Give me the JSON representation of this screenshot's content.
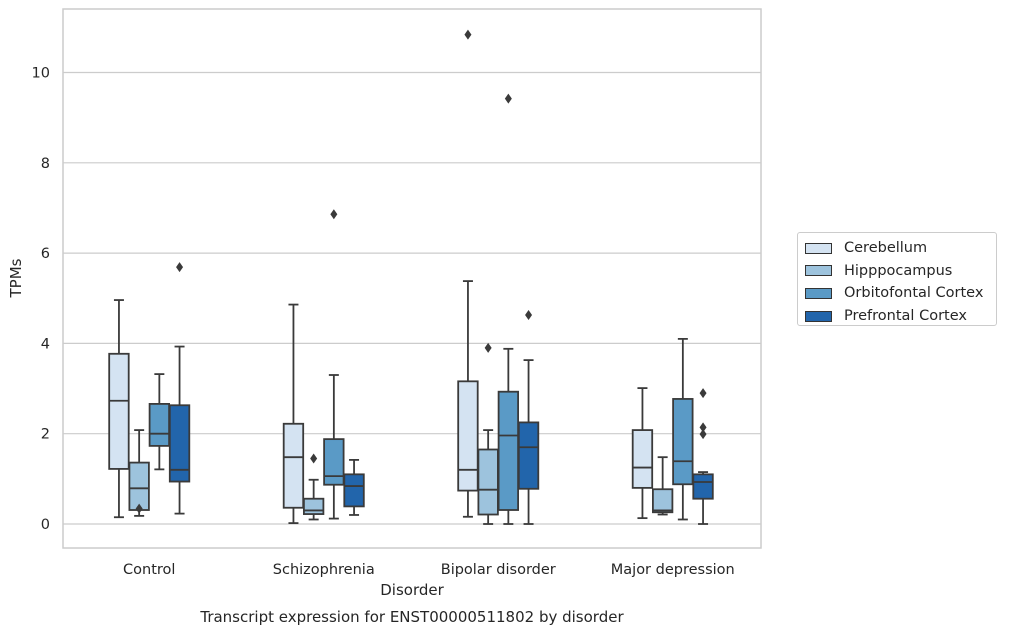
{
  "chart_data": {
    "type": "box",
    "title": "Transcript expression for ENST00000511802 by disorder",
    "xlabel": "Disorder",
    "ylabel": "TPMs",
    "ylim": [
      -0.5,
      11.4
    ],
    "yticks": [
      0,
      2,
      4,
      6,
      8,
      10
    ],
    "grid": "horizontal",
    "legend_position": "right",
    "categories": [
      "Control",
      "Schizophrenia",
      "Bipolar disorder",
      "Major depression"
    ],
    "series": [
      {
        "name": "Cerebellum",
        "color": "#d4e3f2",
        "boxes": [
          {
            "min": 0.15,
            "q1": 1.22,
            "median": 2.73,
            "q3": 3.77,
            "max": 4.96,
            "outliers": []
          },
          {
            "min": 0.02,
            "q1": 0.36,
            "median": 1.48,
            "q3": 2.22,
            "max": 4.86,
            "outliers": []
          },
          {
            "min": 0.16,
            "q1": 0.74,
            "median": 1.2,
            "q3": 3.16,
            "max": 5.38,
            "outliers": [
              10.84
            ]
          },
          {
            "min": 0.13,
            "q1": 0.8,
            "median": 1.25,
            "q3": 2.08,
            "max": 3.01,
            "outliers": []
          }
        ]
      },
      {
        "name": "Hipppocampus",
        "color": "#9dc3dd",
        "boxes": [
          {
            "min": 0.18,
            "q1": 0.31,
            "median": 0.79,
            "q3": 1.36,
            "max": 2.08,
            "outliers": [
              0.34
            ]
          },
          {
            "min": 0.1,
            "q1": 0.22,
            "median": 0.3,
            "q3": 0.56,
            "max": 0.98,
            "outliers": [
              1.45
            ]
          },
          {
            "min": 0.0,
            "q1": 0.21,
            "median": 0.76,
            "q3": 1.65,
            "max": 2.08,
            "outliers": [
              3.9
            ]
          },
          {
            "min": 0.21,
            "q1": 0.26,
            "median": 0.3,
            "q3": 0.77,
            "max": 1.48,
            "outliers": []
          }
        ]
      },
      {
        "name": "Orbitofontal Cortex",
        "color": "#5a9ac6",
        "boxes": [
          {
            "min": 1.21,
            "q1": 1.73,
            "median": 2.0,
            "q3": 2.66,
            "max": 3.32,
            "outliers": []
          },
          {
            "min": 0.12,
            "q1": 0.87,
            "median": 1.06,
            "q3": 1.88,
            "max": 3.3,
            "outliers": [
              6.86
            ]
          },
          {
            "min": 0.0,
            "q1": 0.31,
            "median": 1.96,
            "q3": 2.93,
            "max": 3.88,
            "outliers": [
              9.42
            ]
          },
          {
            "min": 0.1,
            "q1": 0.88,
            "median": 1.39,
            "q3": 2.77,
            "max": 4.1,
            "outliers": []
          }
        ]
      },
      {
        "name": "Prefrontal Cortex",
        "color": "#2265ab",
        "boxes": [
          {
            "min": 0.23,
            "q1": 0.94,
            "median": 1.2,
            "q3": 2.63,
            "max": 3.93,
            "outliers": [
              5.69
            ]
          },
          {
            "min": 0.2,
            "q1": 0.39,
            "median": 0.84,
            "q3": 1.1,
            "max": 1.42,
            "outliers": []
          },
          {
            "min": 0.0,
            "q1": 0.78,
            "median": 1.7,
            "q3": 2.25,
            "max": 3.63,
            "outliers": [
              4.63
            ]
          },
          {
            "min": 0.0,
            "q1": 0.56,
            "median": 0.93,
            "q3": 1.1,
            "max": 1.15,
            "outliers": [
              2.9,
              2.14,
              1.99
            ]
          }
        ]
      }
    ]
  }
}
